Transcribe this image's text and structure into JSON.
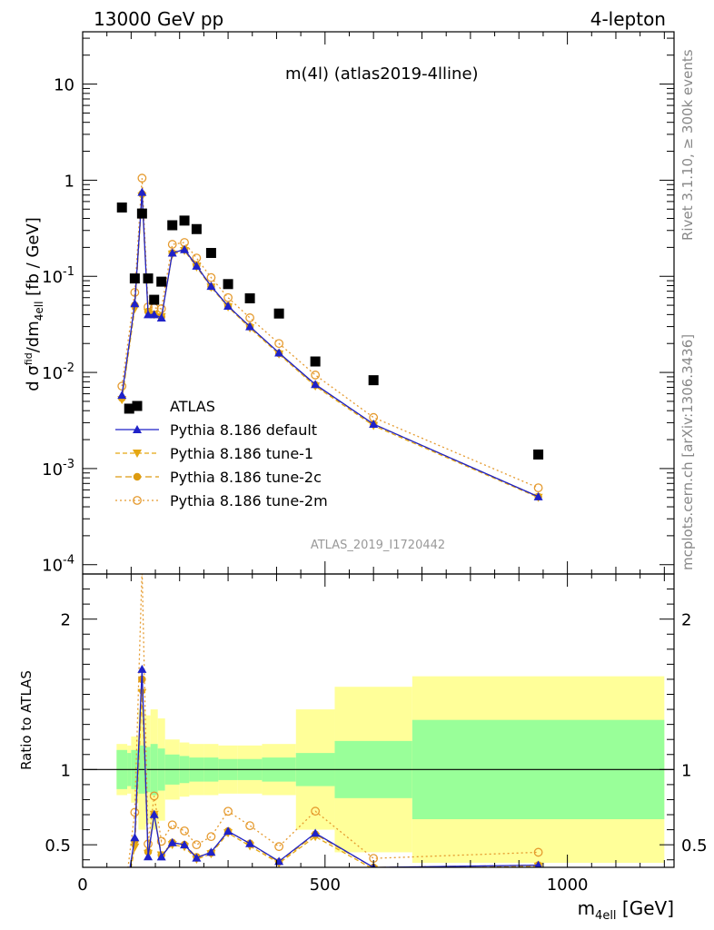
{
  "header": {
    "left": "13000 GeV pp",
    "right": "4-lepton"
  },
  "side": {
    "rivet": "Rivet 3.1.10, ≥ 300k events",
    "mcplots": "mcplots.cern.ch [arXiv:1306.3436]"
  },
  "chart_data": {
    "type": "line",
    "title": "m(4l) (atlas2019-4lline)",
    "watermark": "ATLAS_2019_I1720442",
    "ylabel": "d σᶠid4ell/dm4ell [fb / GeV]",
    "xlabel": "m4ell [GeV]",
    "ratio_ylabel": "Ratio to ATLAS",
    "xlim": [
      0,
      1220
    ],
    "ylim": [
      8e-05,
      35
    ],
    "ylog": true,
    "ratio_ylim": [
      0.35,
      2.3
    ],
    "x_ticks": [
      "0",
      "500",
      "1000"
    ],
    "y_ticks": [
      "10",
      "1",
      "10^-1",
      "10^-2",
      "10^-3",
      "10^-4"
    ],
    "ratio_ticks": [
      "2",
      "1",
      "0.5"
    ],
    "legend_position": "bottom-left",
    "bins": [
      [
        70,
        92
      ],
      [
        92,
        100
      ],
      [
        100,
        115
      ],
      [
        115,
        130
      ],
      [
        130,
        140
      ],
      [
        140,
        155
      ],
      [
        155,
        170
      ],
      [
        170,
        200
      ],
      [
        200,
        220
      ],
      [
        220,
        250
      ],
      [
        250,
        280
      ],
      [
        280,
        320
      ],
      [
        320,
        370
      ],
      [
        370,
        440
      ],
      [
        440,
        520
      ],
      [
        520,
        680
      ],
      [
        680,
        1200
      ]
    ],
    "x": [
      81,
      96,
      107.5,
      122.5,
      135,
      147.5,
      162.5,
      185,
      210,
      235,
      265,
      300,
      345,
      405,
      480,
      600,
      940
    ],
    "ratio_band_inner": [
      0.13,
      0.11,
      0.13,
      0.16,
      0.15,
      0.17,
      0.14,
      0.1,
      0.09,
      0.08,
      0.08,
      0.07,
      0.07,
      0.08,
      0.11,
      0.19,
      0.33
    ],
    "ratio_band_outer": [
      0.17,
      0.16,
      0.22,
      0.4,
      0.36,
      0.4,
      0.34,
      0.2,
      0.18,
      0.17,
      0.17,
      0.16,
      0.16,
      0.17,
      0.4,
      0.55,
      0.62
    ],
    "series": [
      {
        "name": "ATLAS",
        "color": "#000000",
        "marker": "square",
        "values": [
          0.52,
          0.0042,
          0.095,
          0.45,
          0.095,
          0.057,
          0.088,
          0.34,
          0.38,
          0.31,
          0.175,
          0.083,
          0.059,
          0.041,
          0.013,
          0.0083,
          0.0014
        ]
      },
      {
        "name": "Pythia 8.186 default",
        "color": "#1f22c8",
        "marker": "triangle-up",
        "dash": "",
        "values": [
          0.0058,
          null,
          0.052,
          0.75,
          0.04,
          0.04,
          0.037,
          0.175,
          0.19,
          0.128,
          0.079,
          0.049,
          0.03,
          0.016,
          0.0075,
          0.0029,
          0.00051
        ]
      },
      {
        "name": "Pythia 8.186 tune-1",
        "color": "#e5a712",
        "marker": "triangle-down",
        "dash": "5,3",
        "values": [
          0.0052,
          null,
          0.046,
          0.68,
          0.042,
          0.04,
          0.038,
          0.17,
          0.185,
          0.125,
          0.077,
          0.048,
          0.029,
          0.0155,
          0.0072,
          0.0028,
          0.0005
        ]
      },
      {
        "name": "Pythia 8.186 tune-2c",
        "color": "#dd9b10",
        "marker": "circle",
        "dash": "7,4",
        "values": [
          0.0054,
          null,
          0.05,
          0.72,
          0.043,
          0.04,
          0.038,
          0.175,
          0.19,
          0.13,
          0.078,
          0.049,
          0.03,
          0.0158,
          0.0074,
          0.0029,
          0.00051
        ]
      },
      {
        "name": "Pythia 8.186 tune-2m",
        "color": "#e59a2e",
        "marker": "open-circle",
        "dash": "2,3",
        "values": [
          0.0072,
          null,
          0.068,
          1.05,
          0.048,
          0.047,
          0.046,
          0.215,
          0.225,
          0.155,
          0.097,
          0.06,
          0.037,
          0.02,
          0.0094,
          0.0034,
          0.00063
        ]
      }
    ]
  }
}
